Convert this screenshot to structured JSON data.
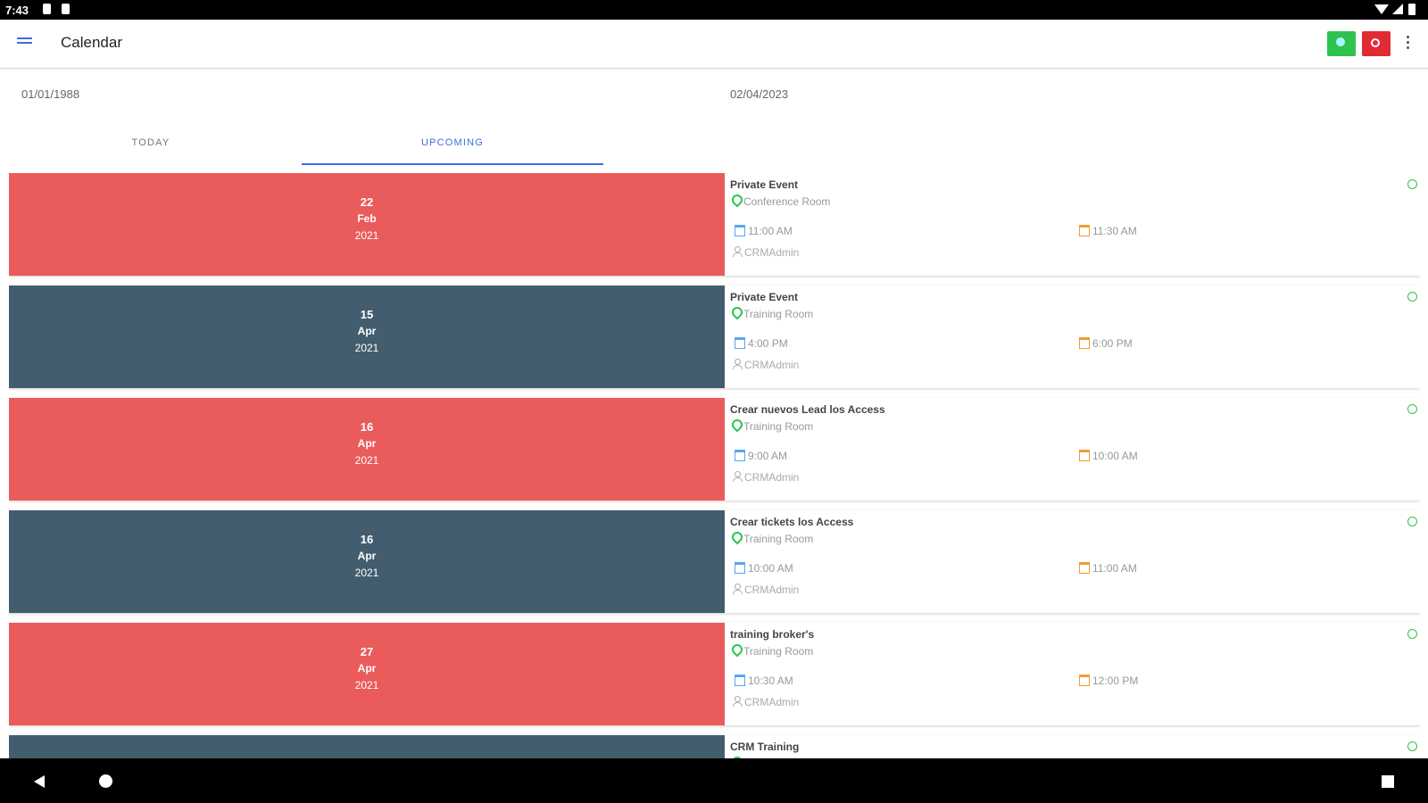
{
  "status_bar": {
    "time": "7:43"
  },
  "app_bar": {
    "title": "Calendar",
    "icons": [
      "menu-icon",
      "search-icon",
      "cancel-icon",
      "more-vert-icon"
    ],
    "button_colors": {
      "green": "#2ec24f",
      "red": "#e02b35"
    }
  },
  "date_range": {
    "start": "01/01/1988",
    "end": "02/04/2023"
  },
  "tabs": [
    {
      "label": "TODAY",
      "selected": false
    },
    {
      "label": "UPCOMING",
      "selected": true
    }
  ],
  "colors": {
    "red": "#ea5b5b",
    "slate": "#435d6e",
    "accent": "#3d6ee0"
  },
  "events": [
    {
      "day": "22",
      "month": "Feb",
      "year": "2021",
      "title": "Private Event",
      "location": "Conference Room",
      "start": "11:00 AM",
      "end": "11:30 AM",
      "user": "CRMAdmin",
      "color": "red"
    },
    {
      "day": "15",
      "month": "Apr",
      "year": "2021",
      "title": "Private Event",
      "location": "Training Room",
      "start": "4:00 PM",
      "end": "6:00 PM",
      "user": "CRMAdmin",
      "color": "slate"
    },
    {
      "day": "16",
      "month": "Apr",
      "year": "2021",
      "title": "Crear nuevos Lead los Access",
      "location": "Training Room",
      "start": "9:00 AM",
      "end": "10:00 AM",
      "user": "CRMAdmin",
      "color": "red"
    },
    {
      "day": "16",
      "month": "Apr",
      "year": "2021",
      "title": "Crear tickets los Access",
      "location": "Training Room",
      "start": "10:00 AM",
      "end": "11:00 AM",
      "user": "CRMAdmin",
      "color": "slate"
    },
    {
      "day": "27",
      "month": "Apr",
      "year": "2021",
      "title": "training broker's",
      "location": "Training Room",
      "start": "10:30 AM",
      "end": "12:00 PM",
      "user": "CRMAdmin",
      "color": "red"
    },
    {
      "day": "",
      "month": "",
      "year": "",
      "title": "CRM Training",
      "location": "",
      "start": "",
      "end": "",
      "user": "",
      "color": "slate"
    }
  ],
  "nav_bar": {
    "icons": [
      "back-icon",
      "home-icon",
      "recents-icon"
    ]
  }
}
